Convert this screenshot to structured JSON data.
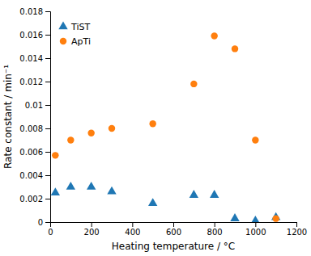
{
  "chart_data": {
    "type": "scatter",
    "xlabel": "Heating temperature / °C",
    "ylabel": "Rate constant / min⁻¹",
    "x": [
      25,
      100,
      200,
      300,
      500,
      700,
      800,
      900,
      1000,
      1100
    ],
    "series": [
      {
        "name": "TiST",
        "marker": "triangle",
        "values": [
          0.0025,
          0.003,
          0.003,
          0.0026,
          0.0016,
          0.0023,
          0.0023,
          0.0003,
          0.0001,
          0.0004
        ]
      },
      {
        "name": "ApTi",
        "marker": "circle",
        "values": [
          0.0057,
          0.007,
          0.0076,
          0.008,
          0.0084,
          0.0118,
          0.0159,
          0.0148,
          0.007,
          0.0003
        ]
      }
    ],
    "xlim": [
      0,
      1200
    ],
    "xticks": [
      0,
      200,
      400,
      600,
      800,
      1000,
      1200
    ],
    "ylim": [
      0,
      0.018
    ],
    "yticks": [
      0,
      0.002,
      0.004,
      0.006,
      0.008,
      0.01,
      0.012,
      0.014,
      0.016,
      0.018
    ],
    "grid": false,
    "legend": "upper left"
  }
}
